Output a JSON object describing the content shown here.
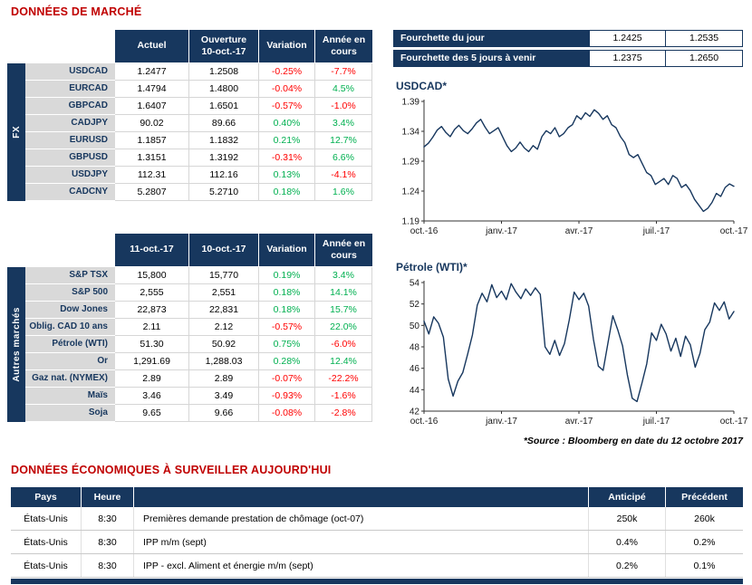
{
  "market": {
    "title": "DONNÉES DE MARCHÉ",
    "fx": {
      "side_label": "FX",
      "headers": [
        "Actuel",
        "Ouverture\n10-oct.-17",
        "Variation",
        "Année en\ncours"
      ],
      "rows": [
        [
          "USDCAD",
          "1.2477",
          "1.2508",
          "-0.25%",
          "-7.7%"
        ],
        [
          "EURCAD",
          "1.4794",
          "1.4800",
          "-0.04%",
          "4.5%"
        ],
        [
          "GBPCAD",
          "1.6407",
          "1.6501",
          "-0.57%",
          "-1.0%"
        ],
        [
          "CADJPY",
          "90.02",
          "89.66",
          "0.40%",
          "3.4%"
        ],
        [
          "EURUSD",
          "1.1857",
          "1.1832",
          "0.21%",
          "12.7%"
        ],
        [
          "GBPUSD",
          "1.3151",
          "1.3192",
          "-0.31%",
          "6.6%"
        ],
        [
          "USDJPY",
          "112.31",
          "112.16",
          "0.13%",
          "-4.1%"
        ],
        [
          "CADCNY",
          "5.2807",
          "5.2710",
          "0.18%",
          "1.6%"
        ]
      ]
    },
    "other": {
      "side_label": "Autres marchés",
      "headers": [
        "11-oct.-17",
        "10-oct.-17",
        "Variation",
        "Année en\ncours"
      ],
      "rows": [
        [
          "S&P TSX",
          "15,800",
          "15,770",
          "0.19%",
          "3.4%"
        ],
        [
          "S&P 500",
          "2,555",
          "2,551",
          "0.18%",
          "14.1%"
        ],
        [
          "Dow Jones",
          "22,873",
          "22,831",
          "0.18%",
          "15.7%"
        ],
        [
          "Oblig. CAD 10 ans",
          "2.11",
          "2.12",
          "-0.57%",
          "22.0%"
        ],
        [
          "Pétrole (WTI)",
          "51.30",
          "50.92",
          "0.75%",
          "-6.0%"
        ],
        [
          "Or",
          "1,291.69",
          "1,288.03",
          "0.28%",
          "12.4%"
        ],
        [
          "Gaz nat. (NYMEX)",
          "2.89",
          "2.89",
          "-0.07%",
          "-22.2%"
        ],
        [
          "Maïs",
          "3.46",
          "3.49",
          "-0.93%",
          "-1.6%"
        ],
        [
          "Soja",
          "9.65",
          "9.66",
          "-0.08%",
          "-2.8%"
        ]
      ]
    }
  },
  "fourchette": {
    "rows": [
      {
        "label": "Fourchette du jour",
        "low": "1.2425",
        "high": "1.2535"
      },
      {
        "label": "Fourchette des 5 jours à venir",
        "low": "1.2375",
        "high": "1.2650"
      }
    ]
  },
  "source_note": "*Source : Bloomberg en date du  12 octobre 2017",
  "economic": {
    "title": "DONNÉES ÉCONOMIQUES À SURVEILLER AUJOURD'HUI",
    "headers": [
      "Pays",
      "Heure",
      "",
      "Anticipé",
      "Précédent"
    ],
    "rows": [
      [
        "États-Unis",
        "8:30",
        "Premières demande prestation de chômage (oct-07)",
        "250k",
        "260k"
      ],
      [
        "États-Unis",
        "8:30",
        "IPP m/m (sept)",
        "0.4%",
        "0.2%"
      ],
      [
        "États-Unis",
        "8:30",
        "IPP - excl. Aliment et énergie m/m (sept)",
        "0.2%",
        "0.1%"
      ]
    ]
  },
  "colors": {
    "navy": "#17375E",
    "positive": "#00B050",
    "negative": "#FF0000",
    "heading_red": "#C00000"
  },
  "chart_data": [
    {
      "type": "line",
      "title": "USDCAD*",
      "x_ticks": [
        "oct.-16",
        "janv.-17",
        "avr.-17",
        "juil.-17",
        "oct.-17"
      ],
      "y_ticks": [
        "1.39",
        "1.34",
        "1.29",
        "1.24",
        "1.19"
      ],
      "ylim": [
        1.19,
        1.39
      ],
      "legend": "none",
      "grid": false,
      "color": "#17375E",
      "values": [
        1.314,
        1.32,
        1.33,
        1.342,
        1.348,
        1.338,
        1.331,
        1.343,
        1.35,
        1.341,
        1.336,
        1.344,
        1.354,
        1.36,
        1.347,
        1.336,
        1.341,
        1.346,
        1.331,
        1.316,
        1.306,
        1.312,
        1.322,
        1.312,
        1.306,
        1.316,
        1.31,
        1.331,
        1.341,
        1.336,
        1.346,
        1.331,
        1.336,
        1.346,
        1.351,
        1.366,
        1.36,
        1.371,
        1.365,
        1.376,
        1.37,
        1.36,
        1.366,
        1.351,
        1.346,
        1.331,
        1.321,
        1.301,
        1.296,
        1.301,
        1.286,
        1.271,
        1.266,
        1.251,
        1.256,
        1.261,
        1.251,
        1.266,
        1.261,
        1.246,
        1.251,
        1.241,
        1.226,
        1.216,
        1.206,
        1.211,
        1.221,
        1.236,
        1.231,
        1.246,
        1.252,
        1.248
      ]
    },
    {
      "type": "line",
      "title": "Pétrole (WTI)*",
      "x_ticks": [
        "oct.-16",
        "janv.-17",
        "avr.-17",
        "juil.-17",
        "oct.-17"
      ],
      "y_ticks": [
        "54",
        "52",
        "50",
        "48",
        "46",
        "44",
        "42"
      ],
      "ylim": [
        42,
        54
      ],
      "legend": "none",
      "grid": false,
      "color": "#17375E",
      "values": [
        50.4,
        49.2,
        50.8,
        50.2,
        48.9,
        45.0,
        43.4,
        44.8,
        45.6,
        47.3,
        49.1,
        51.9,
        53.0,
        52.2,
        53.8,
        52.6,
        53.2,
        52.4,
        53.9,
        53.1,
        52.5,
        53.4,
        52.8,
        53.5,
        52.9,
        48.0,
        47.3,
        48.6,
        47.2,
        48.3,
        50.5,
        53.1,
        52.4,
        53.0,
        51.8,
        48.7,
        46.2,
        45.8,
        48.4,
        50.9,
        49.6,
        48.1,
        45.4,
        43.2,
        42.9,
        44.6,
        46.4,
        49.3,
        48.6,
        50.1,
        49.2,
        47.6,
        48.8,
        47.1,
        49.0,
        48.2,
        46.1,
        47.4,
        49.6,
        50.3,
        52.1,
        51.4,
        52.2,
        50.6,
        51.3
      ]
    }
  ]
}
